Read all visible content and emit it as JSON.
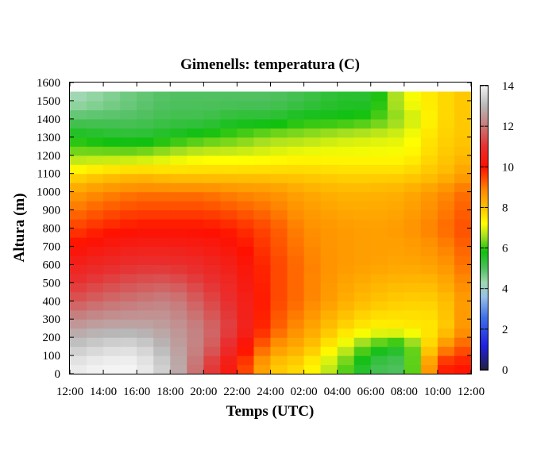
{
  "chart_data": {
    "type": "heatmap",
    "title": "Gimenells: temperatura (C)",
    "xlabel": "Temps (UTC)",
    "ylabel": "Altura (m)",
    "x_ticks": [
      "12:00",
      "14:00",
      "16:00",
      "18:00",
      "20:00",
      "22:00",
      "24:00",
      "02:00",
      "04:00",
      "06:00",
      "08:00",
      "10:00",
      "12:00"
    ],
    "y_ticks": [
      "0",
      "100",
      "200",
      "300",
      "400",
      "500",
      "600",
      "700",
      "800",
      "900",
      "1000",
      "1100",
      "1200",
      "1300",
      "1400",
      "1500",
      "1600"
    ],
    "ylim": [
      0,
      1600
    ],
    "x_range_hours": [
      0,
      24
    ],
    "colorbar": {
      "label": "",
      "range": [
        0,
        14
      ],
      "ticks": [
        "0",
        "2",
        "4",
        "6",
        "8",
        "10",
        "12",
        "14"
      ]
    },
    "data_top_m": 1550,
    "layer_step_m": 50,
    "time_step_h": 1,
    "hours": [
      0,
      1,
      2,
      3,
      4,
      5,
      6,
      7,
      8,
      9,
      10,
      11,
      12,
      13,
      14,
      15,
      16,
      17,
      18,
      19,
      20,
      21,
      22,
      23,
      24
    ],
    "profiles": [
      {
        "h": 0,
        "hz": [
          50,
          150,
          250,
          400,
          600,
          800,
          1000,
          1100,
          1200,
          1300,
          1400,
          1500
        ],
        "t": [
          13.8,
          13.2,
          12.6,
          11.5,
          10.5,
          9.5,
          8.5,
          7.5,
          6.5,
          5.8,
          5.0,
          4.2
        ]
      },
      {
        "h": 2,
        "hz": [
          50,
          150,
          250,
          400,
          600,
          800,
          1000,
          1100,
          1200,
          1300,
          1400,
          1500
        ],
        "t": [
          14.0,
          13.5,
          12.8,
          11.8,
          10.8,
          9.8,
          8.8,
          7.8,
          6.5,
          5.6,
          5.0,
          4.5
        ]
      },
      {
        "h": 4,
        "hz": [
          50,
          150,
          250,
          400,
          600,
          800,
          1000,
          1100,
          1200,
          1300,
          1400,
          1500
        ],
        "t": [
          14.0,
          13.6,
          12.8,
          12.0,
          11.0,
          10.0,
          9.0,
          8.0,
          6.5,
          5.5,
          5.0,
          4.8
        ]
      },
      {
        "h": 6,
        "hz": [
          50,
          150,
          250,
          400,
          600,
          800,
          1000,
          1100,
          1200,
          1300,
          1400,
          1500
        ],
        "t": [
          13.2,
          12.8,
          12.6,
          12.2,
          11.0,
          10.0,
          9.0,
          7.8,
          6.8,
          5.7,
          5.2,
          5.0
        ]
      },
      {
        "h": 8,
        "hz": [
          50,
          150,
          250,
          400,
          600,
          800,
          1000,
          1100,
          1200,
          1300,
          1400,
          1500
        ],
        "t": [
          11.5,
          12.0,
          12.0,
          11.5,
          10.8,
          10.0,
          9.0,
          7.8,
          7.0,
          6.0,
          5.2,
          5.0
        ]
      },
      {
        "h": 10,
        "hz": [
          50,
          150,
          250,
          400,
          600,
          800,
          1000,
          1100,
          1200,
          1300,
          1400,
          1500
        ],
        "t": [
          10.0,
          10.5,
          11.0,
          10.8,
          10.4,
          9.8,
          8.8,
          7.8,
          7.0,
          6.2,
          5.5,
          5.0
        ]
      },
      {
        "h": 12,
        "hz": [
          50,
          150,
          250,
          400,
          600,
          800,
          1000,
          1100,
          1200,
          1300,
          1400,
          1500
        ],
        "t": [
          8.0,
          8.8,
          9.4,
          9.6,
          9.6,
          9.4,
          8.7,
          7.8,
          7.1,
          6.5,
          5.5,
          5.0
        ]
      },
      {
        "h": 14,
        "hz": [
          50,
          150,
          250,
          400,
          600,
          800,
          1000,
          1100,
          1200,
          1300,
          1400,
          1500
        ],
        "t": [
          7.6,
          8.2,
          8.6,
          9.0,
          9.0,
          8.8,
          8.4,
          7.8,
          7.2,
          6.6,
          5.8,
          5.2
        ]
      },
      {
        "h": 16,
        "hz": [
          50,
          150,
          250,
          400,
          600,
          800,
          1000,
          1100,
          1200,
          1300,
          1400,
          1500
        ],
        "t": [
          6.5,
          7.2,
          7.8,
          8.4,
          8.6,
          8.6,
          8.2,
          7.7,
          7.2,
          6.8,
          5.8,
          5.5
        ]
      },
      {
        "h": 18,
        "hz": [
          50,
          150,
          250,
          400,
          600,
          800,
          1000,
          1100,
          1200,
          1300,
          1400,
          1500
        ],
        "t": [
          5.2,
          6.0,
          7.3,
          8.0,
          8.5,
          8.5,
          8.2,
          7.7,
          7.2,
          6.9,
          6.0,
          5.5
        ]
      },
      {
        "h": 20,
        "hz": [
          50,
          150,
          250,
          400,
          600,
          800,
          1000,
          1100,
          1200,
          1300,
          1400,
          1500
        ],
        "t": [
          5.0,
          5.5,
          7.4,
          7.8,
          8.4,
          8.6,
          8.3,
          7.7,
          7.2,
          7.0,
          6.6,
          7.0
        ]
      },
      {
        "h": 22,
        "hz": [
          50,
          150,
          250,
          400,
          600,
          800,
          1000,
          1100,
          1200,
          1300,
          1400,
          1500
        ],
        "t": [
          9.8,
          8.5,
          7.5,
          7.8,
          8.5,
          9.0,
          8.7,
          8.0,
          7.8,
          7.7,
          7.6,
          7.6
        ]
      },
      {
        "h": 24,
        "hz": [
          50,
          150,
          250,
          400,
          600,
          800,
          1000,
          1100,
          1200,
          1300,
          1400,
          1500
        ],
        "t": [
          10.0,
          9.5,
          9.0,
          8.8,
          9.2,
          9.5,
          9.2,
          8.6,
          8.2,
          8.0,
          8.0,
          8.0
        ]
      }
    ],
    "colormap": [
      {
        "v": 0,
        "c": "#202040"
      },
      {
        "v": 1.2,
        "c": "#2020e0"
      },
      {
        "v": 2.6,
        "c": "#4070e8"
      },
      {
        "v": 3.6,
        "c": "#98c0e8"
      },
      {
        "v": 4.3,
        "c": "#a0d8b0"
      },
      {
        "v": 5.0,
        "c": "#50c060"
      },
      {
        "v": 5.8,
        "c": "#10c010"
      },
      {
        "v": 6.6,
        "c": "#a8e020"
      },
      {
        "v": 7.2,
        "c": "#ffff00"
      },
      {
        "v": 7.9,
        "c": "#ffc800"
      },
      {
        "v": 8.8,
        "c": "#ff8c00"
      },
      {
        "v": 10.0,
        "c": "#ff1000"
      },
      {
        "v": 11.0,
        "c": "#e83030"
      },
      {
        "v": 12.0,
        "c": "#c87878"
      },
      {
        "v": 13.0,
        "c": "#b8b8b8"
      },
      {
        "v": 14.0,
        "c": "#f4f4f4"
      }
    ]
  }
}
